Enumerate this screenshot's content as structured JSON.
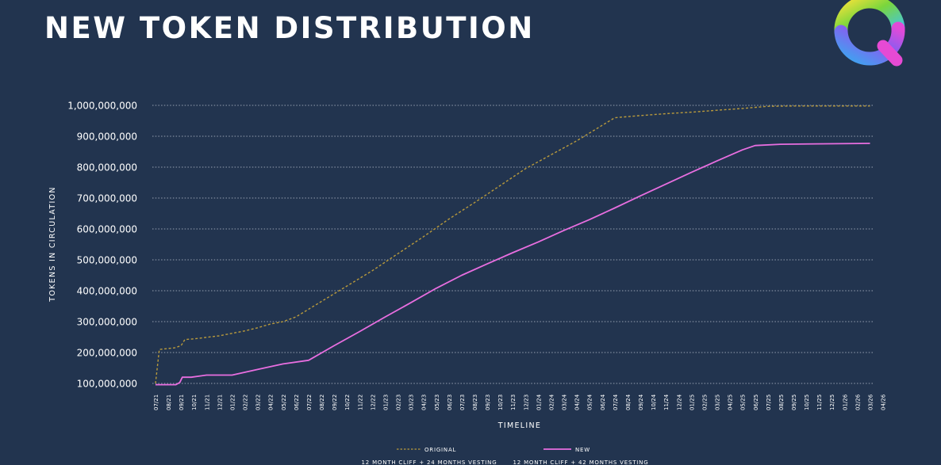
{
  "header": {
    "title": "NEW TOKEN DISTRIBUTION",
    "logo_icon": "q-ring-logo-icon"
  },
  "chart_data": {
    "type": "line",
    "title": "NEW TOKEN DISTRIBUTION",
    "xlabel": "TIMELINE",
    "ylabel": "TOKENS IN CIRCULATION",
    "ylim": [
      100000000,
      1000000000
    ],
    "yticks": [
      {
        "value": 100000000,
        "label": "100,000,000"
      },
      {
        "value": 200000000,
        "label": "200,000,000"
      },
      {
        "value": 300000000,
        "label": "300,000,000"
      },
      {
        "value": 400000000,
        "label": "400,000,000"
      },
      {
        "value": 500000000,
        "label": "500,000,000"
      },
      {
        "value": 600000000,
        "label": "600,000,000"
      },
      {
        "value": 700000000,
        "label": "700,000,000"
      },
      {
        "value": 800000000,
        "label": "800,000,000"
      },
      {
        "value": 900000000,
        "label": "900,000,000"
      },
      {
        "value": 1000000000,
        "label": "1,000,000,000"
      }
    ],
    "categories": [
      "07/21",
      "08/21",
      "09/21",
      "10/21",
      "11/21",
      "12/21",
      "01/22",
      "02/22",
      "03/22",
      "04/22",
      "05/22",
      "06/22",
      "07/22",
      "08/22",
      "09/22",
      "10/22",
      "11/22",
      "12/22",
      "01/23",
      "02/23",
      "03/23",
      "04/23",
      "05/23",
      "06/23",
      "07/23",
      "08/23",
      "09/23",
      "10/23",
      "11/23",
      "12/23",
      "01/24",
      "02/24",
      "03/24",
      "04/24",
      "05/24",
      "06/24",
      "07/24",
      "08/24",
      "09/24",
      "10/24",
      "11/24",
      "12/24",
      "01/25",
      "02/25",
      "03/25",
      "04/25",
      "05/25",
      "06/25",
      "07/25",
      "08/25",
      "09/25",
      "10/25",
      "11/25",
      "12/25",
      "01/26",
      "02/26",
      "03/26",
      "04/26"
    ],
    "grid": true,
    "grid_style": "dotted-horizontal",
    "legend_placement": "bottom-center",
    "series": [
      {
        "name": "ORIGINAL",
        "note": "12 MONTH CLIFF + 24 MONTHS VESTING",
        "color": "#b99a3c",
        "style": "dashed",
        "points": [
          [
            0,
            100000000
          ],
          [
            0.3,
            210000000
          ],
          [
            1.5,
            215000000
          ],
          [
            2,
            222000000
          ],
          [
            2.3,
            242000000
          ],
          [
            3,
            244000000
          ],
          [
            5,
            254000000
          ],
          [
            7,
            270000000
          ],
          [
            8,
            280000000
          ],
          [
            9,
            292000000
          ],
          [
            10,
            300000000
          ],
          [
            11,
            315000000
          ],
          [
            13,
            365000000
          ],
          [
            15,
            415000000
          ],
          [
            17,
            465000000
          ],
          [
            19,
            520000000
          ],
          [
            21,
            575000000
          ],
          [
            23,
            632000000
          ],
          [
            25,
            685000000
          ],
          [
            27,
            740000000
          ],
          [
            29,
            795000000
          ],
          [
            31,
            840000000
          ],
          [
            33,
            885000000
          ],
          [
            35,
            935000000
          ],
          [
            36,
            960000000
          ],
          [
            38,
            967000000
          ],
          [
            40,
            973000000
          ],
          [
            42,
            978000000
          ],
          [
            44,
            984000000
          ],
          [
            46,
            990000000
          ],
          [
            48,
            997000000
          ],
          [
            50,
            998000000
          ],
          [
            56,
            998000000
          ]
        ]
      },
      {
        "name": "NEW",
        "note": "12 MONTH CLIFF + 42 MONTHS VESTING",
        "color": "#e86ee0",
        "style": "solid",
        "points": [
          [
            0,
            96000000
          ],
          [
            1.6,
            96000000
          ],
          [
            1.9,
            103000000
          ],
          [
            2.1,
            120000000
          ],
          [
            2.8,
            120000000
          ],
          [
            4,
            127000000
          ],
          [
            6,
            127000000
          ],
          [
            8,
            145000000
          ],
          [
            10,
            163000000
          ],
          [
            12,
            175000000
          ],
          [
            14,
            222000000
          ],
          [
            16,
            268000000
          ],
          [
            18,
            315000000
          ],
          [
            20,
            361000000
          ],
          [
            22,
            408000000
          ],
          [
            24,
            450000000
          ],
          [
            26,
            487000000
          ],
          [
            28,
            523000000
          ],
          [
            30,
            558000000
          ],
          [
            32,
            595000000
          ],
          [
            34,
            630000000
          ],
          [
            36,
            668000000
          ],
          [
            38,
            707000000
          ],
          [
            40,
            745000000
          ],
          [
            42,
            783000000
          ],
          [
            44,
            820000000
          ],
          [
            46,
            856000000
          ],
          [
            47,
            870000000
          ],
          [
            49,
            874000000
          ],
          [
            56,
            877000000
          ]
        ]
      }
    ]
  }
}
